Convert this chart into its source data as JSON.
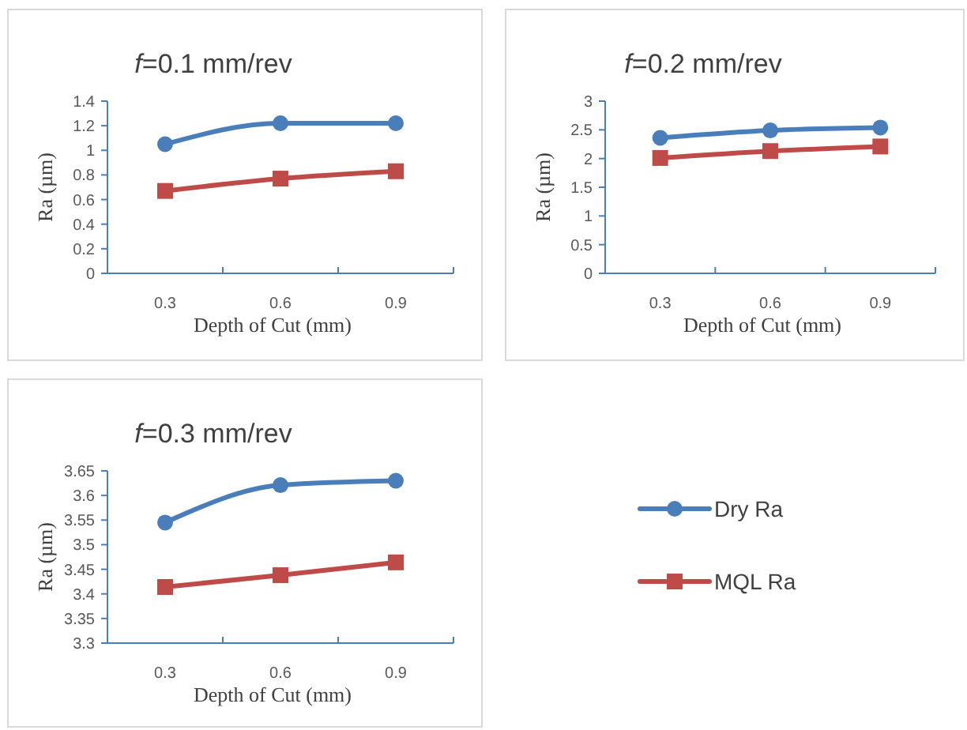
{
  "chart_data": [
    {
      "type": "line",
      "title": "f=0.1 mm/rev",
      "xlabel": "Depth of Cut (mm)",
      "ylabel": "Ra (µm)",
      "categories": [
        "0.3",
        "0.6",
        "0.9"
      ],
      "ylim": [
        0,
        1.4
      ],
      "yticks": [
        0,
        0.2,
        0.4,
        0.6,
        0.8,
        1,
        1.2,
        1.4
      ],
      "grid": false,
      "legend": false,
      "series": [
        {
          "color": "#4a7ebb",
          "marker": "circle",
          "values": [
            1.05,
            1.22,
            1.22
          ]
        },
        {
          "color": "#be4b48",
          "marker": "square",
          "values": [
            0.67,
            0.77,
            0.83
          ]
        }
      ]
    },
    {
      "type": "line",
      "title": "f=0.2 mm/rev",
      "xlabel": "Depth of Cut (mm)",
      "ylabel": "Ra (µm)",
      "categories": [
        "0.3",
        "0.6",
        "0.9"
      ],
      "ylim": [
        0,
        3
      ],
      "yticks": [
        0,
        0.5,
        1,
        1.5,
        2,
        2.5,
        3
      ],
      "grid": false,
      "legend": false,
      "series": [
        {
          "color": "#4a7ebb",
          "marker": "circle",
          "values": [
            2.36,
            2.49,
            2.54
          ]
        },
        {
          "color": "#be4b48",
          "marker": "square",
          "values": [
            2.01,
            2.13,
            2.21
          ]
        }
      ]
    },
    {
      "type": "line",
      "title": "f=0.3 mm/rev",
      "xlabel": "Depth of Cut (mm)",
      "ylabel": "Ra (µm)",
      "categories": [
        "0.3",
        "0.6",
        "0.9"
      ],
      "ylim": [
        3.3,
        3.65
      ],
      "yticks": [
        3.3,
        3.35,
        3.4,
        3.45,
        3.5,
        3.55,
        3.6,
        3.65
      ],
      "grid": false,
      "legend": "right",
      "series": [
        {
          "name": "Dry Ra",
          "color": "#4a7ebb",
          "marker": "circle",
          "values": [
            3.545,
            3.621,
            3.63
          ]
        },
        {
          "name": "MQL Ra",
          "color": "#be4b48",
          "marker": "square",
          "values": [
            3.414,
            3.438,
            3.464
          ]
        }
      ]
    }
  ]
}
